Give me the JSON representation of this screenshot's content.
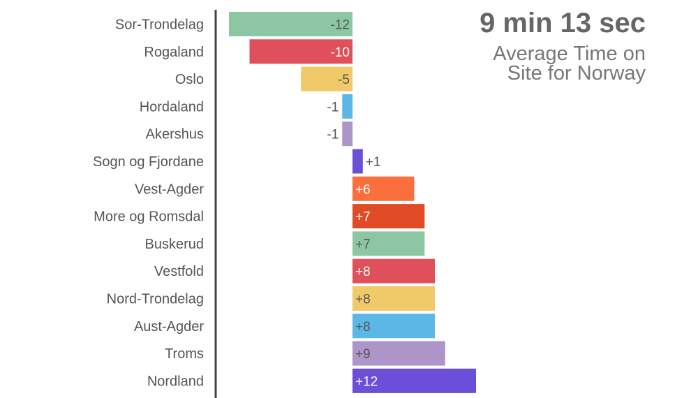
{
  "headline": {
    "time": "9 min 13 sec",
    "caption_line1": "Average Time on",
    "caption_line2": "Site for Norway"
  },
  "chart_data": {
    "type": "bar",
    "orientation": "horizontal",
    "categories": [
      "Sor-Trondelag",
      "Rogaland",
      "Oslo",
      "Hordaland",
      "Akershus",
      "Sogn og Fjordane",
      "Vest-Agder",
      "More og Romsdal",
      "Buskerud",
      "Vestfold",
      "Nord-Trondelag",
      "Aust-Agder",
      "Troms",
      "Nordland"
    ],
    "values": [
      -12,
      -10,
      -5,
      -1,
      -1,
      1,
      6,
      7,
      7,
      8,
      8,
      8,
      9,
      12
    ],
    "labels": [
      "-12",
      "-10",
      "-5",
      "-1",
      "-1",
      "+1",
      "+6",
      "+7",
      "+7",
      "+8",
      "+8",
      "+8",
      "+9",
      "+12"
    ],
    "colors": [
      "#8cc6a3",
      "#e0505a",
      "#f0c968",
      "#5bb8e6",
      "#ad95c9",
      "#6c4fd8",
      "#fa6f3c",
      "#e04b26",
      "#8cc6a3",
      "#e0505a",
      "#f0c968",
      "#5bb8e6",
      "#ad95c9",
      "#6c4fd8"
    ],
    "label_colors": [
      "#555555",
      "#ffffff",
      "#555555",
      "#555555",
      "#555555",
      "#555555",
      "#ffffff",
      "#ffffff",
      "#555555",
      "#ffffff",
      "#555555",
      "#555555",
      "#555555",
      "#ffffff"
    ],
    "xlim": [
      -12,
      12
    ],
    "grid": false,
    "legend": "none"
  }
}
